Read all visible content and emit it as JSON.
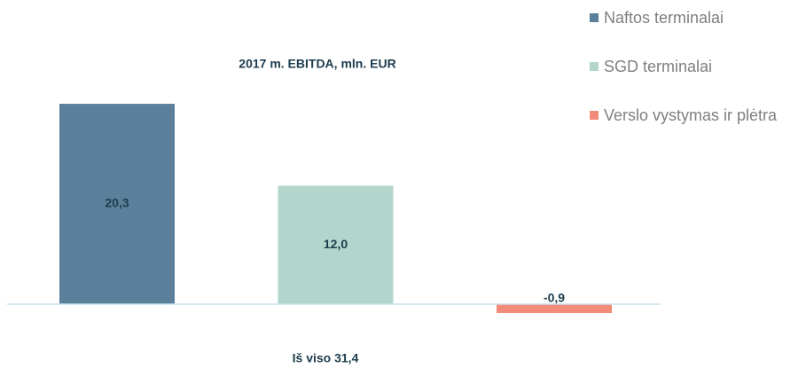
{
  "chart_data": {
    "type": "bar",
    "title": "2017 m. EBITDA, mln. EUR",
    "categories": [
      "Naftos terminalai",
      "SGD terminalai",
      "Verslo vystymas ir plėtra"
    ],
    "values": [
      20.3,
      12.0,
      -0.9
    ],
    "value_labels": [
      "20,3",
      "12,0",
      "-0,9"
    ],
    "colors": [
      "#5b809b",
      "#b3d6cc",
      "#f38b7b"
    ],
    "annotation": "Iš viso 31,4"
  }
}
